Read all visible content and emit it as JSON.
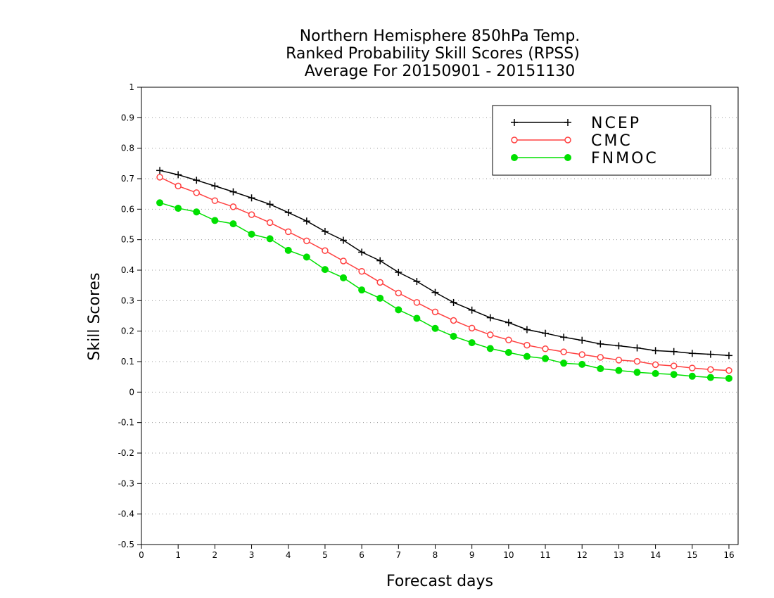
{
  "chart_data": {
    "type": "line",
    "title": [
      "Northern Hemisphere 850hPa Temp.",
      "Ranked Probability Skill Scores (RPSS)",
      "Average For 20150901 - 20151130"
    ],
    "xlabel": "Forecast days",
    "ylabel": "Skill Scores",
    "xlim": [
      0,
      16.25
    ],
    "ylim": [
      -0.5,
      1
    ],
    "xticks": [
      0,
      1,
      2,
      3,
      4,
      5,
      6,
      7,
      8,
      9,
      10,
      11,
      12,
      13,
      14,
      15,
      16
    ],
    "xtick_labels": [
      "0",
      "1",
      "2",
      "3",
      "4",
      "5",
      "6",
      "7",
      "8",
      "9",
      "10",
      "11",
      "12",
      "13",
      "14",
      "15",
      "16"
    ],
    "yticks": [
      -0.5,
      -0.4,
      -0.3,
      -0.2,
      -0.1,
      0,
      0.1,
      0.2,
      0.3,
      0.4,
      0.5,
      0.6,
      0.7,
      0.8,
      0.9,
      1
    ],
    "ytick_labels": [
      "-0.5",
      "-0.4",
      "-0.3",
      "-0.2",
      "-0.1",
      "0",
      "0.1",
      "0.2",
      "0.3",
      "0.4",
      "0.5",
      "0.6",
      "0.7",
      "0.8",
      "0.9",
      "1"
    ],
    "grid": "horizontal dotted",
    "legend_position": "top-right",
    "x": [
      0.5,
      1,
      1.5,
      2,
      2.5,
      3,
      3.5,
      4,
      4.5,
      5,
      5.5,
      6,
      6.5,
      7,
      7.5,
      8,
      8.5,
      9,
      9.5,
      10,
      10.5,
      11,
      11.5,
      12,
      12.5,
      13,
      13.5,
      14,
      14.5,
      15,
      15.5,
      16
    ],
    "series": [
      {
        "name": "NCEP",
        "color": "#000000",
        "marker": "plus",
        "values": [
          0.727,
          0.713,
          0.695,
          0.676,
          0.657,
          0.637,
          0.616,
          0.589,
          0.561,
          0.527,
          0.498,
          0.459,
          0.431,
          0.393,
          0.363,
          0.327,
          0.294,
          0.269,
          0.244,
          0.228,
          0.205,
          0.193,
          0.18,
          0.17,
          0.158,
          0.152,
          0.145,
          0.136,
          0.133,
          0.127,
          0.124,
          0.12
        ]
      },
      {
        "name": "CMC",
        "color": "#ff4040",
        "marker": "open-circle",
        "values": [
          0.705,
          0.676,
          0.654,
          0.628,
          0.608,
          0.582,
          0.556,
          0.526,
          0.496,
          0.464,
          0.43,
          0.396,
          0.36,
          0.325,
          0.294,
          0.263,
          0.235,
          0.21,
          0.188,
          0.171,
          0.154,
          0.142,
          0.132,
          0.123,
          0.114,
          0.105,
          0.101,
          0.09,
          0.086,
          0.079,
          0.074,
          0.071
        ]
      },
      {
        "name": "FNMOC",
        "color": "#00e000",
        "marker": "filled-circle",
        "values": [
          0.621,
          0.603,
          0.591,
          0.563,
          0.552,
          0.518,
          0.503,
          0.465,
          0.443,
          0.402,
          0.375,
          0.335,
          0.308,
          0.27,
          0.242,
          0.209,
          0.183,
          0.162,
          0.143,
          0.13,
          0.117,
          0.11,
          0.095,
          0.091,
          0.077,
          0.071,
          0.065,
          0.061,
          0.058,
          0.052,
          0.048,
          0.045
        ]
      }
    ]
  }
}
